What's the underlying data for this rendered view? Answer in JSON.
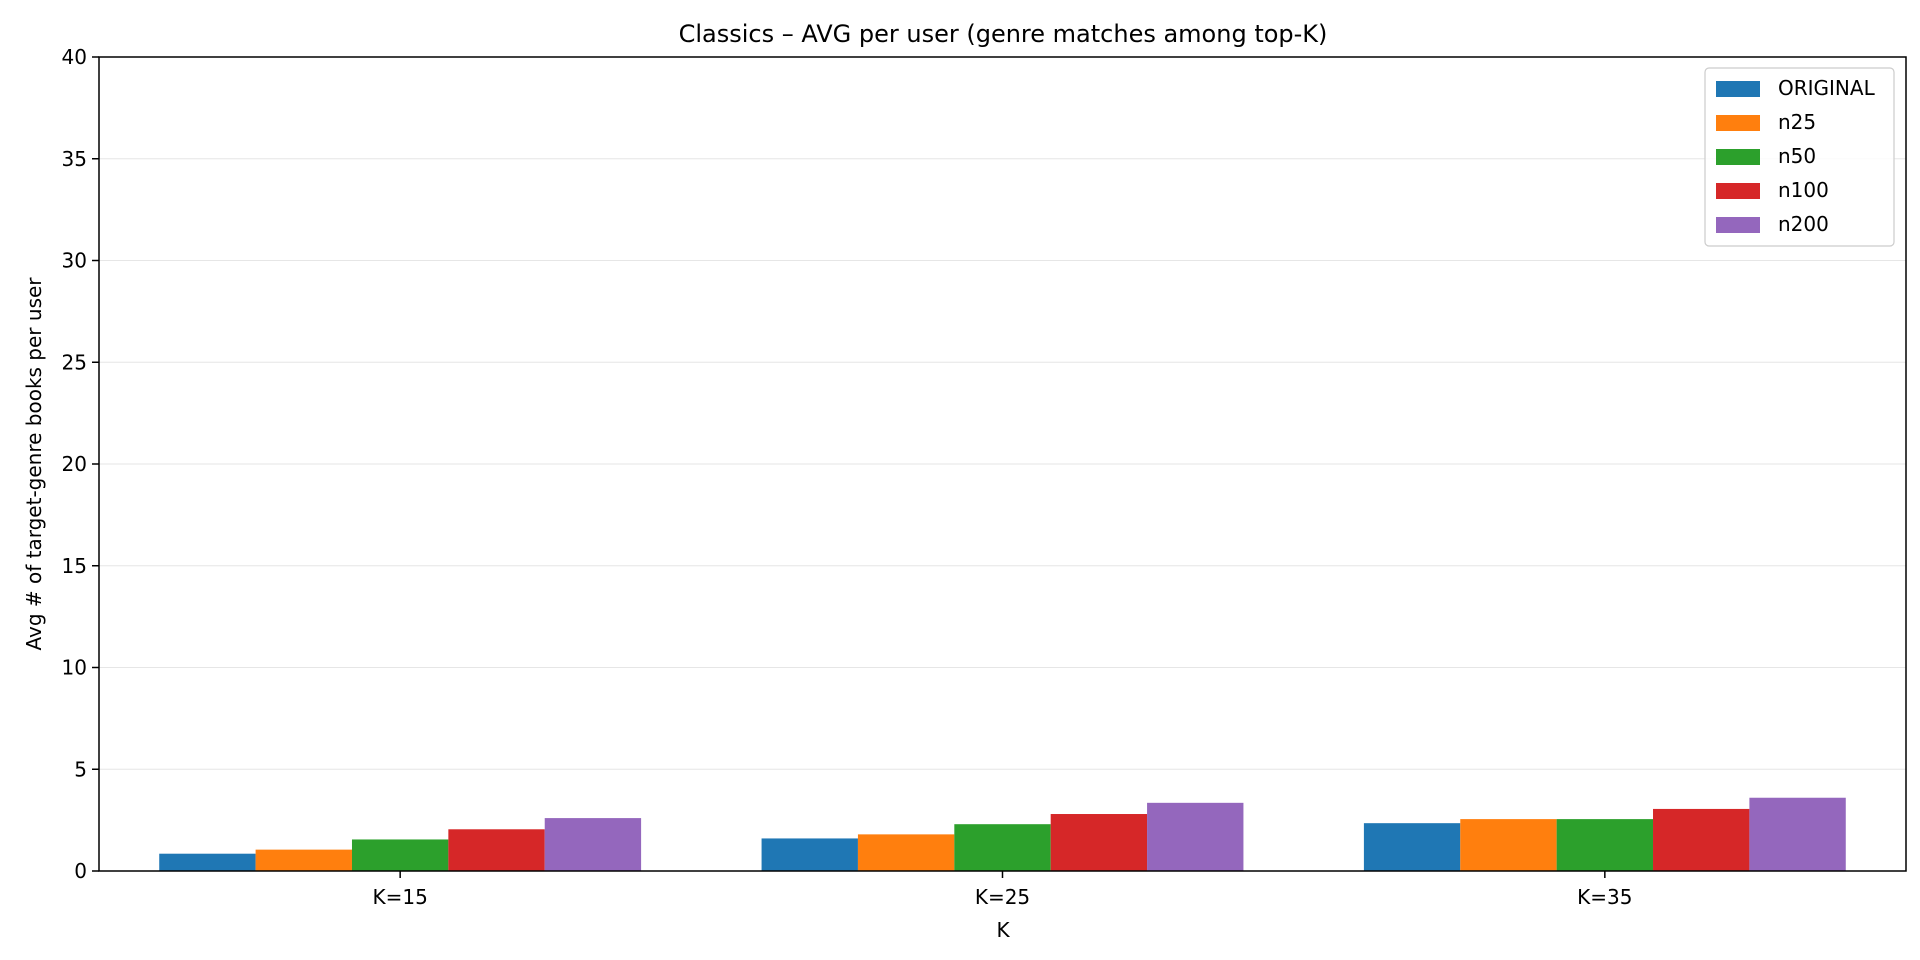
{
  "chart_data": {
    "type": "bar",
    "title": "Classics – AVG per user (genre matches among top-K)",
    "xlabel": "K",
    "ylabel": "Avg # of target-genre books per user",
    "categories": [
      "K=15",
      "K=25",
      "K=35"
    ],
    "ylim": [
      0,
      40
    ],
    "yticks": [
      0,
      5,
      10,
      15,
      20,
      25,
      30,
      35,
      40
    ],
    "grid": "horizontal",
    "legend_position": "top-right",
    "series": [
      {
        "name": "ORIGINAL",
        "color": "#1f77b4",
        "values": [
          0.85,
          1.6,
          2.35
        ]
      },
      {
        "name": "n25",
        "color": "#ff7f0e",
        "values": [
          1.05,
          1.8,
          2.55
        ]
      },
      {
        "name": "n50",
        "color": "#2ca02c",
        "values": [
          1.55,
          2.3,
          2.55
        ]
      },
      {
        "name": "n100",
        "color": "#d62728",
        "values": [
          2.05,
          2.8,
          3.05
        ]
      },
      {
        "name": "n200",
        "color": "#9467bd",
        "values": [
          2.6,
          3.35,
          3.6
        ]
      }
    ]
  }
}
